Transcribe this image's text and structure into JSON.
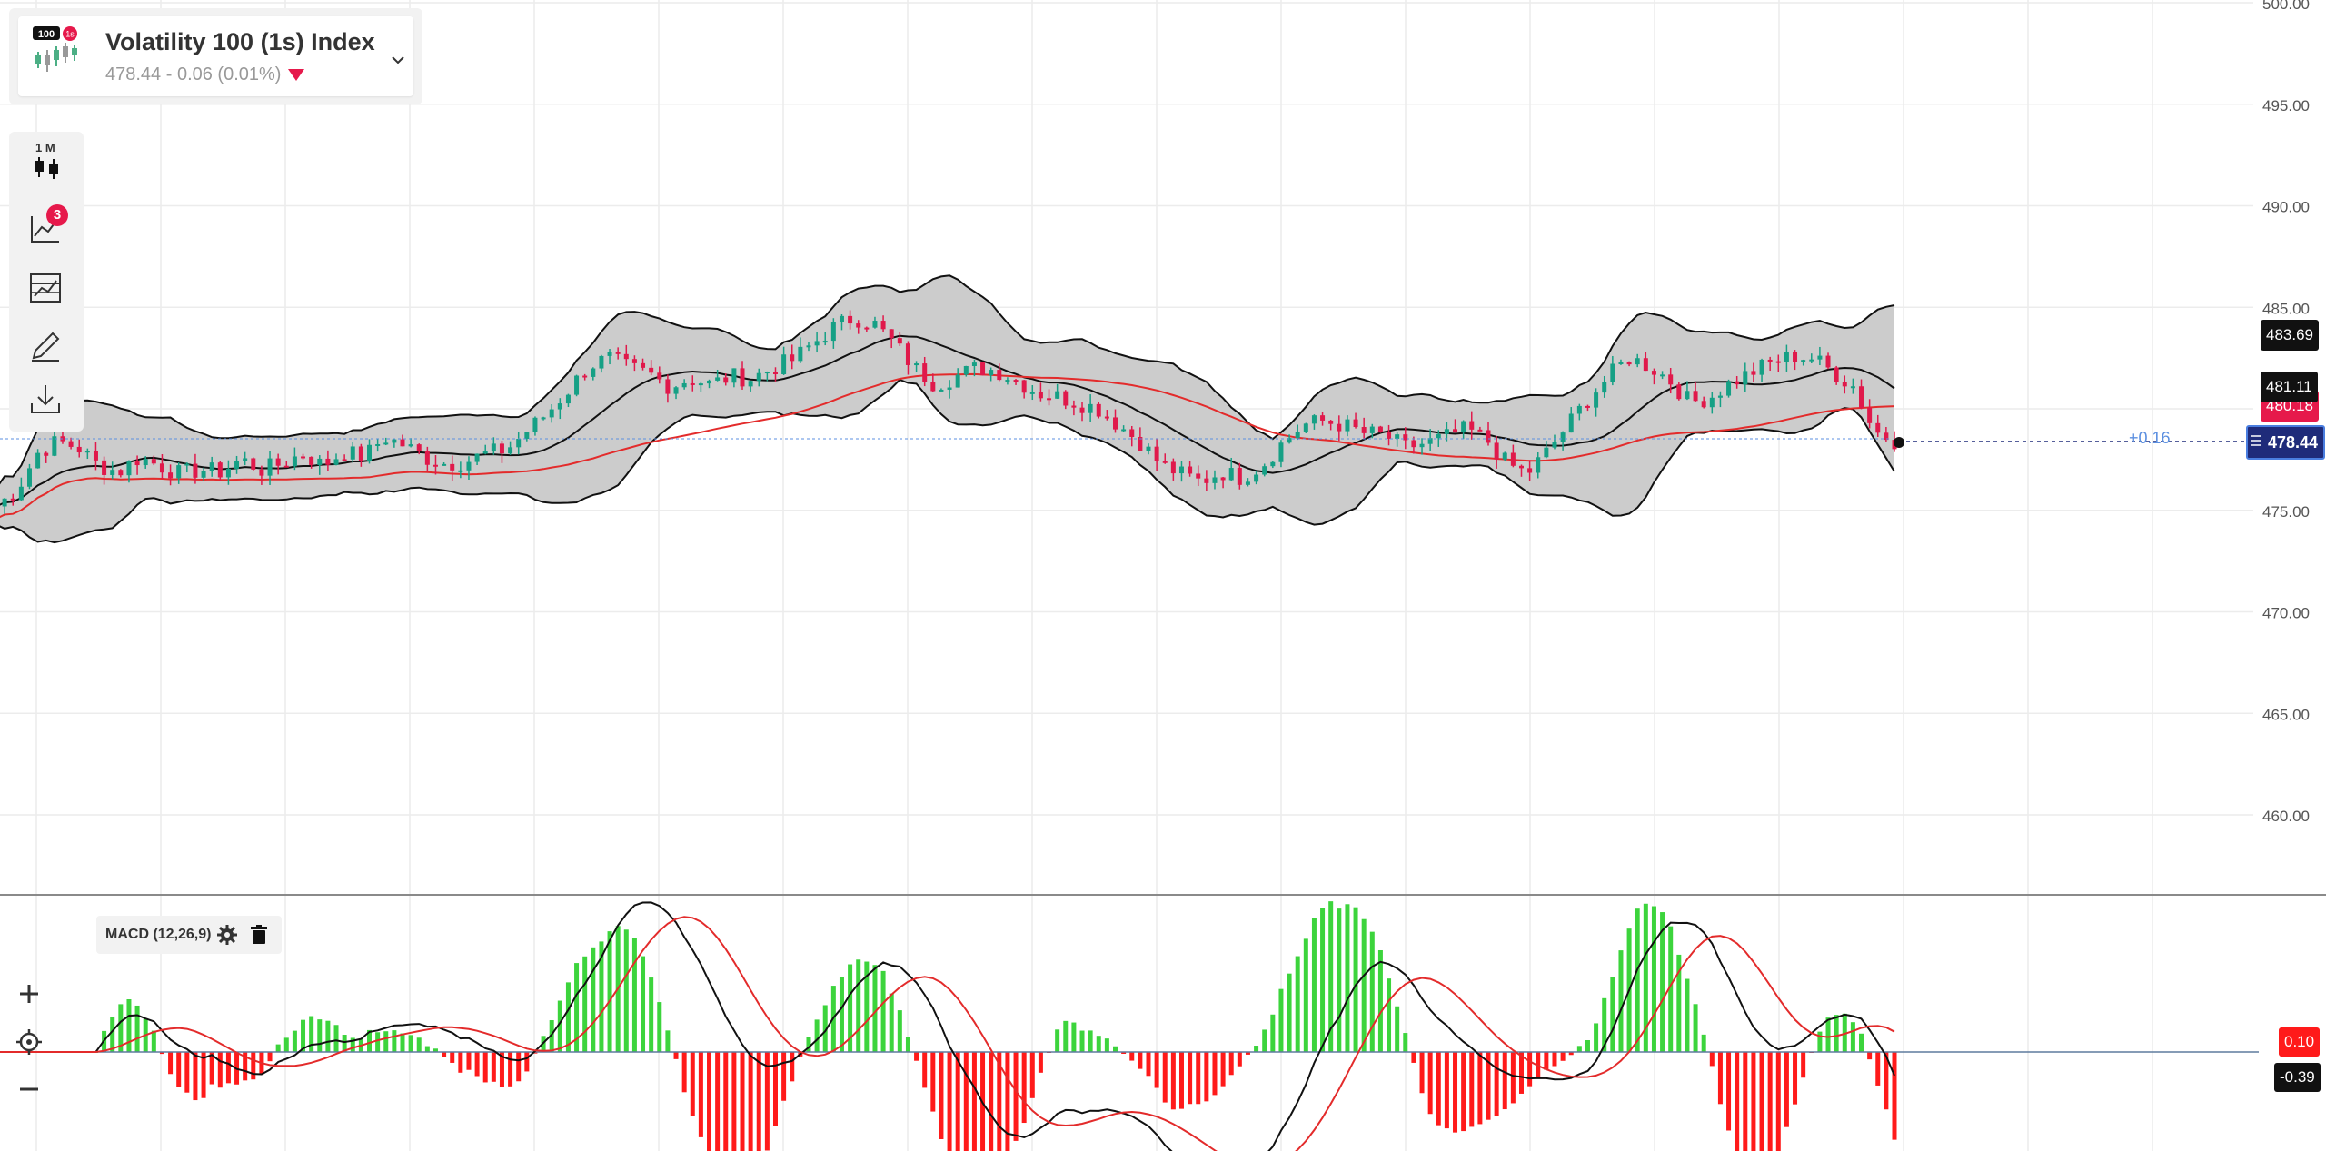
{
  "symbol": {
    "name": "Volatility 100 (1s) Index",
    "quote": "478.44 - 0.06 (0.01%)",
    "icon_badge_left": "100",
    "icon_badge_right": "1s"
  },
  "toolbar": {
    "timeframe_label": "1 M",
    "indicators_count": "3",
    "icons": [
      "candle-chart-type-icon",
      "indicators-icon",
      "templates-icon",
      "drawing-tools-icon",
      "download-icon"
    ]
  },
  "price_axis": {
    "ticks": [
      "500.00",
      "495.00",
      "490.00",
      "485.00",
      "480.00",
      "475.00",
      "470.00",
      "465.00",
      "460.00"
    ],
    "labels": {
      "upper_band": "483.69",
      "middle_band": "481.11",
      "ma": "480.18",
      "current": "478.44",
      "offset": "+0.16"
    }
  },
  "macd": {
    "label": "MACD (12,26,9)",
    "value_signal": "0.10",
    "value_macd": "-0.39"
  },
  "colors": {
    "up_candle": "#16a085",
    "down_candle": "#e0194b",
    "band_fill": "#cccccc",
    "ma_line": "#e32b2b",
    "current_price": "#1f2b7a",
    "hist_up": "#3cd43c",
    "hist_down": "#ff1a1a"
  },
  "chart_data": {
    "type": "candlestick",
    "ylim": [
      458,
      500
    ],
    "close_path": [
      475.2,
      476.0,
      477.8,
      478.4,
      478.1,
      477.2,
      476.9,
      477.6,
      477.2,
      476.8,
      477.0,
      476.9,
      477.5,
      477.0,
      477.3,
      477.8,
      477.2,
      477.9,
      477.6,
      478.6,
      478.2,
      477.6,
      477.3,
      477.4,
      477.8,
      478.0,
      478.9,
      479.8,
      480.9,
      482.1,
      482.5,
      482.0,
      481.7,
      481.1,
      481.5,
      481.2,
      481.6,
      481.5,
      482.0,
      482.4,
      483.2,
      484.0,
      484.5,
      484.2,
      483.2,
      482.0,
      481.2,
      481.6,
      482.0,
      481.9,
      481.4,
      480.8,
      480.6,
      480.3,
      480.0,
      479.2,
      478.4,
      477.3,
      476.8,
      476.4,
      476.9,
      476.6,
      477.2,
      478.3,
      479.2,
      479.4,
      479.2,
      478.8,
      478.7,
      478.1,
      478.3,
      478.6,
      479.0,
      478.5,
      477.3,
      476.8,
      477.9,
      479.2,
      480.5,
      481.6,
      482.5,
      482.1,
      481.4,
      480.3,
      480.6,
      481.3,
      481.8,
      482.3,
      482.6,
      482.5,
      481.8,
      481.1,
      478.9,
      478.44
    ]
  }
}
